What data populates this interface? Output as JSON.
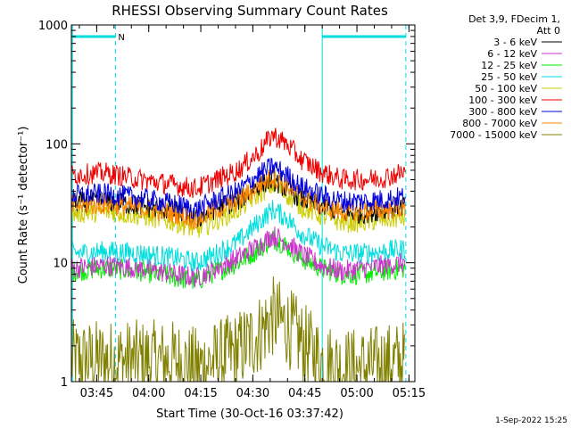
{
  "chart_data": {
    "type": "line",
    "title": "RHESSI Observing Summary Count Rates",
    "xlabel": "Start Time (30-Oct-16 03:37:42)",
    "ylabel": "Count Rate (s⁻¹ detector⁻¹)",
    "y_scale": "log",
    "ylim": [
      1,
      1000
    ],
    "y_ticks": [
      {
        "value": 1,
        "label": "1"
      },
      {
        "value": 10,
        "label": "10"
      },
      {
        "value": 100,
        "label": "100"
      },
      {
        "value": 1000,
        "label": "1000"
      }
    ],
    "x_ticks": [
      "03:45",
      "04:00",
      "04:15",
      "04:30",
      "04:45",
      "05:00",
      "05:15"
    ],
    "x_tick_minutes": [
      7.3,
      22.3,
      37.3,
      52.3,
      67.3,
      82.3,
      97.3
    ],
    "xlim_minutes": [
      0,
      99
    ],
    "legend_header": [
      "Det 3,9, FDecim 1,",
      "Att 0"
    ],
    "legend_position": "right",
    "grid": false,
    "series": [
      {
        "name": "3 - 6 keV",
        "color": "#000000",
        "x": [
          0,
          10,
          20,
          30,
          36,
          42,
          48,
          54,
          58,
          62,
          66,
          72,
          78,
          84,
          90,
          96
        ],
        "y": [
          32,
          33,
          30,
          27,
          23,
          29,
          33,
          45,
          50,
          42,
          35,
          30,
          26,
          26,
          28,
          30
        ]
      },
      {
        "name": "6 - 12 keV",
        "color": "#cc33cc",
        "x": [
          0,
          10,
          20,
          30,
          36,
          42,
          48,
          54,
          58,
          62,
          66,
          72,
          78,
          84,
          90,
          96
        ],
        "y": [
          9,
          9.5,
          9,
          8,
          7.5,
          9,
          11,
          14,
          17,
          15,
          12,
          9.5,
          8.5,
          9,
          9.5,
          10
        ]
      },
      {
        "name": "12 - 25 keV",
        "color": "#00ee00",
        "x": [
          0,
          10,
          20,
          30,
          36,
          42,
          48,
          54,
          58,
          62,
          66,
          72,
          78,
          84,
          90,
          96
        ],
        "y": [
          8.5,
          9,
          8.5,
          7.5,
          7,
          8.5,
          10,
          13,
          16,
          14,
          11,
          9,
          8,
          8,
          8.5,
          9
        ]
      },
      {
        "name": "25 - 50 keV",
        "color": "#00dddd",
        "x": [
          0,
          10,
          20,
          30,
          36,
          42,
          48,
          54,
          58,
          62,
          66,
          72,
          78,
          84,
          90,
          96
        ],
        "y": [
          12,
          12.5,
          12,
          11,
          10,
          12,
          15,
          22,
          28,
          24,
          18,
          14,
          12,
          12,
          12.5,
          13
        ]
      },
      {
        "name": "50 - 100 keV",
        "color": "#cccc00",
        "x": [
          0,
          10,
          20,
          30,
          36,
          42,
          48,
          54,
          58,
          62,
          66,
          72,
          78,
          84,
          90,
          96
        ],
        "y": [
          26,
          27,
          25,
          22,
          19,
          23,
          28,
          38,
          45,
          38,
          30,
          25,
          22,
          22,
          23,
          24
        ]
      },
      {
        "name": "100 - 300 keV",
        "color": "#ee0000",
        "x": [
          0,
          10,
          20,
          30,
          36,
          42,
          48,
          54,
          58,
          62,
          66,
          72,
          78,
          84,
          90,
          96
        ],
        "y": [
          55,
          57,
          50,
          45,
          42,
          50,
          60,
          85,
          120,
          100,
          75,
          58,
          50,
          50,
          52,
          58
        ]
      },
      {
        "name": "300 - 800 keV",
        "color": "#0000dd",
        "x": [
          0,
          10,
          20,
          30,
          36,
          42,
          48,
          54,
          58,
          62,
          66,
          72,
          78,
          84,
          90,
          96
        ],
        "y": [
          37,
          38,
          35,
          31,
          28,
          34,
          40,
          55,
          65,
          55,
          44,
          37,
          33,
          33,
          34,
          36
        ]
      },
      {
        "name": "800 - 7000 keV",
        "color": "#ff8800",
        "x": [
          0,
          10,
          20,
          30,
          36,
          42,
          48,
          54,
          58,
          62,
          66,
          72,
          78,
          84,
          90,
          96
        ],
        "y": [
          30,
          31,
          29,
          26,
          23,
          28,
          33,
          45,
          53,
          45,
          36,
          30,
          27,
          27,
          28,
          29
        ]
      },
      {
        "name": "7000 - 15000 keV",
        "color": "#808000",
        "x": [
          0,
          10,
          20,
          30,
          36,
          42,
          48,
          54,
          58,
          62,
          66,
          72,
          78,
          84,
          90,
          96
        ],
        "y": [
          1.5,
          1.5,
          1.5,
          1.5,
          1.3,
          1.5,
          1.8,
          2.5,
          3.5,
          3.0,
          2.2,
          1.5,
          1.3,
          1.3,
          1.4,
          1.5
        ]
      }
    ],
    "annotations": {
      "flag_label": "N",
      "timestamp": "1-Sep-2022 15:25"
    }
  }
}
